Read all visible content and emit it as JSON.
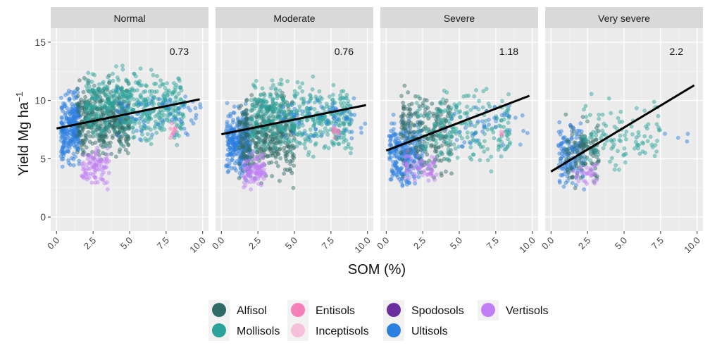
{
  "chart_data": {
    "type": "scatter",
    "xlabel": "SOM (%)",
    "ylabel": "Yield  Mg  ha",
    "ylabel_superscript": "−1",
    "xlim": [
      -0.4,
      10.4
    ],
    "ylim": [
      -1.2,
      16.2
    ],
    "x_ticks": [
      "0.0",
      "2.5",
      "5.0",
      "7.5",
      "10.0"
    ],
    "x_tick_values": [
      0,
      2.5,
      5,
      7.5,
      10
    ],
    "y_ticks": [
      "0",
      "5",
      "10",
      "15"
    ],
    "y_tick_values": [
      0,
      5,
      10,
      15
    ],
    "grid": true,
    "legend_position": "bottom",
    "legend": [
      {
        "name": "Alfisol",
        "color": "#2e6b66"
      },
      {
        "name": "Mollisols",
        "color": "#2aa39b"
      },
      {
        "name": "Entisols",
        "color": "#f57fb8"
      },
      {
        "name": "Inceptisols",
        "color": "#f8bfdb"
      },
      {
        "name": "Spodosols",
        "color": "#6a2ea0"
      },
      {
        "name": "Ultisols",
        "color": "#2b7fe0"
      },
      {
        "name": "Vertisols",
        "color": "#c07ef5"
      }
    ],
    "panels": [
      {
        "title": "Normal",
        "annotation": "0.73",
        "fit_line": {
          "x": [
            0,
            9.8
          ],
          "y": [
            7.6,
            10.1
          ]
        },
        "point_clouds": [
          {
            "soil": "Ultisols",
            "x": [
              0.3,
              1.6
            ],
            "y": [
              3.8,
              11.5
            ],
            "n": 260
          },
          {
            "soil": "Alfisol",
            "x": [
              1.4,
              5.0
            ],
            "y": [
              4.0,
              12.5
            ],
            "n": 420
          },
          {
            "soil": "Mollisols",
            "x": [
              2.0,
              8.8
            ],
            "y": [
              5.5,
              13.5
            ],
            "n": 480
          },
          {
            "soil": "Vertisols",
            "x": [
              1.7,
              3.6
            ],
            "y": [
              2.2,
              6.5
            ],
            "n": 90
          },
          {
            "soil": "Ultisols",
            "x": [
              4.0,
              9.9
            ],
            "y": [
              6.0,
              11.5
            ],
            "n": 60
          },
          {
            "soil": "Entisols",
            "x": [
              7.6,
              8.2
            ],
            "y": [
              6.2,
              8.5
            ],
            "n": 10
          }
        ]
      },
      {
        "title": "Moderate",
        "annotation": "0.76",
        "fit_line": {
          "x": [
            0,
            9.9
          ],
          "y": [
            7.1,
            9.6
          ]
        },
        "point_clouds": [
          {
            "soil": "Ultisols",
            "x": [
              0.3,
              2.0
            ],
            "y": [
              2.5,
              10.5
            ],
            "n": 280
          },
          {
            "soil": "Alfisol",
            "x": [
              1.2,
              5.0
            ],
            "y": [
              2.0,
              12.0
            ],
            "n": 400
          },
          {
            "soil": "Mollisols",
            "x": [
              2.0,
              8.9
            ],
            "y": [
              4.5,
              12.5
            ],
            "n": 460
          },
          {
            "soil": "Vertisols",
            "x": [
              1.5,
              3.0
            ],
            "y": [
              2.0,
              6.0
            ],
            "n": 100
          },
          {
            "soil": "Ultisols",
            "x": [
              4.0,
              9.9
            ],
            "y": [
              6.0,
              11.0
            ],
            "n": 60
          },
          {
            "soil": "Entisols",
            "x": [
              7.6,
              8.2
            ],
            "y": [
              6.5,
              8.0
            ],
            "n": 10
          }
        ]
      },
      {
        "title": "Severe",
        "annotation": "1.18",
        "fit_line": {
          "x": [
            0,
            9.8
          ],
          "y": [
            5.7,
            10.4
          ]
        },
        "point_clouds": [
          {
            "soil": "Ultisols",
            "x": [
              0.2,
              2.5
            ],
            "y": [
              1.8,
              9.5
            ],
            "n": 260
          },
          {
            "soil": "Alfisol",
            "x": [
              1.0,
              4.5
            ],
            "y": [
              2.0,
              12.2
            ],
            "n": 220
          },
          {
            "soil": "Mollisols",
            "x": [
              2.0,
              8.5
            ],
            "y": [
              3.5,
              12.0
            ],
            "n": 220
          },
          {
            "soil": "Vertisols",
            "x": [
              1.2,
              3.5
            ],
            "y": [
              2.5,
              6.0
            ],
            "n": 60
          },
          {
            "soil": "Ultisols",
            "x": [
              4.0,
              9.8
            ],
            "y": [
              5.0,
              10.8
            ],
            "n": 40
          },
          {
            "soil": "Entisols",
            "x": [
              7.8,
              8.2
            ],
            "y": [
              6.8,
              7.5
            ],
            "n": 3
          }
        ]
      },
      {
        "title": "Very severe",
        "annotation": "2.2",
        "fit_line": {
          "x": [
            0,
            9.8
          ],
          "y": [
            3.9,
            11.3
          ]
        },
        "point_clouds": [
          {
            "soil": "Ultisols",
            "x": [
              0.5,
              2.3
            ],
            "y": [
              1.5,
              9.0
            ],
            "n": 140
          },
          {
            "soil": "Alfisol",
            "x": [
              1.0,
              3.3
            ],
            "y": [
              1.5,
              9.5
            ],
            "n": 110
          },
          {
            "soil": "Mollisols",
            "x": [
              2.0,
              7.5
            ],
            "y": [
              3.0,
              10.8
            ],
            "n": 110
          },
          {
            "soil": "Vertisols",
            "x": [
              1.5,
              3.2
            ],
            "y": [
              2.5,
              5.0
            ],
            "n": 30
          },
          {
            "soil": "Ultisols",
            "x": [
              5.0,
              9.8
            ],
            "y": [
              6.0,
              8.5
            ],
            "n": 4
          }
        ]
      }
    ]
  }
}
